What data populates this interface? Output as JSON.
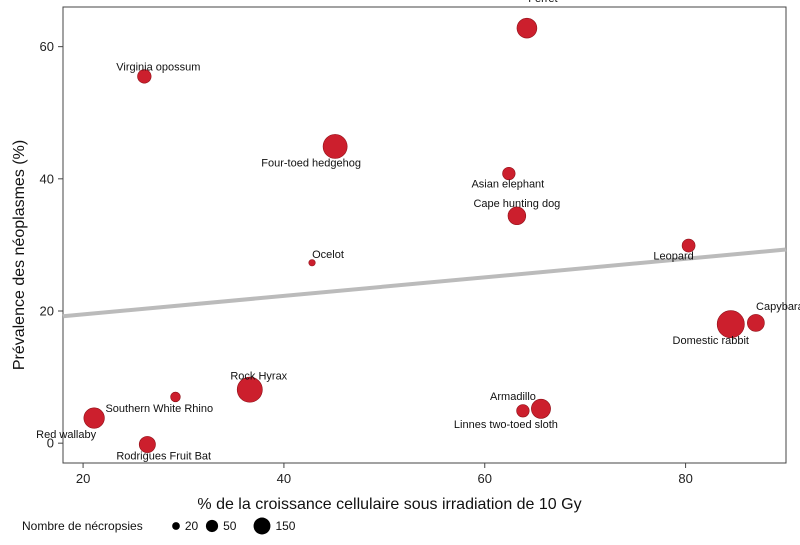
{
  "chart_data": {
    "type": "scatter",
    "xlabel": "% de la croissance cellulaire sous irradiation de 10 Gy",
    "ylabel": "Prévalence des néoplasmes (%)",
    "xlim": [
      18,
      90
    ],
    "ylim": [
      -3,
      66
    ],
    "xticks": [
      20,
      40,
      60,
      80
    ],
    "yticks": [
      0,
      20,
      40,
      60
    ],
    "grid": false,
    "points": [
      {
        "label": "Ferret",
        "x": 64.2,
        "y": 62.8,
        "necropsies": 75
      },
      {
        "label": "Virginia opossum",
        "x": 26.1,
        "y": 55.5,
        "necropsies": 35
      },
      {
        "label": "Four-toed hedgehog",
        "x": 45.1,
        "y": 44.9,
        "necropsies": 110
      },
      {
        "label": "Asian elephant",
        "x": 62.4,
        "y": 40.8,
        "necropsies": 30
      },
      {
        "label": "Cape hunting dog",
        "x": 63.2,
        "y": 34.4,
        "necropsies": 60
      },
      {
        "label": "Ocelot",
        "x": 42.8,
        "y": 27.3,
        "necropsies": 8
      },
      {
        "label": "Leopard",
        "x": 80.3,
        "y": 29.9,
        "necropsies": 32
      },
      {
        "label": "Capybara",
        "x": 87.0,
        "y": 18.2,
        "necropsies": 55
      },
      {
        "label": "Domestic rabbit",
        "x": 84.5,
        "y": 18.0,
        "necropsies": 140
      },
      {
        "label": "Rock Hyrax",
        "x": 36.6,
        "y": 8.1,
        "necropsies": 120
      },
      {
        "label": "Southern White Rhino",
        "x": 29.2,
        "y": 7.0,
        "necropsies": 18
      },
      {
        "label": "Armadillo",
        "x": 65.6,
        "y": 5.2,
        "necropsies": 70
      },
      {
        "label": "Linnes two-toed sloth",
        "x": 63.8,
        "y": 4.9,
        "necropsies": 30
      },
      {
        "label": "Red wallaby",
        "x": 21.1,
        "y": 3.8,
        "necropsies": 80
      },
      {
        "label": "Rodrigues Fruit Bat",
        "x": 26.4,
        "y": -0.2,
        "necropsies": 50
      }
    ],
    "trendline": {
      "x": [
        18,
        90
      ],
      "y": [
        19.2,
        29.3
      ]
    },
    "legend": {
      "title": "Nombre de nécropsies",
      "sizes": [
        20,
        50,
        150
      ],
      "labels": [
        "20",
        "50",
        "150"
      ]
    },
    "colors": {
      "point": "#cc1f2d",
      "trend": "#bbbbbb",
      "axis": "#444444"
    }
  }
}
